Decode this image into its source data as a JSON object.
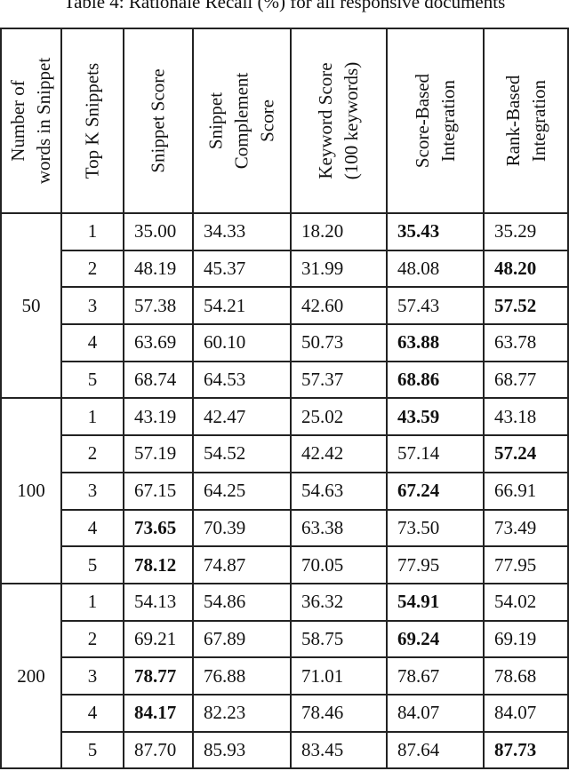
{
  "caption": "Table 4: Rationale Recall (%) for all responsive documents",
  "headers": [
    {
      "l1": "Number of",
      "l2": "words in Snippet"
    },
    {
      "l1": "Top K Snippets"
    },
    {
      "l1": "Snippet Score"
    },
    {
      "l1": "Snippet",
      "l2": "Complement",
      "l3": "Score"
    },
    {
      "l1": "Keyword Score",
      "l2": "(100 keywords)"
    },
    {
      "l1": "Score-Based",
      "l2": "Integration"
    },
    {
      "l1": "Rank-Based",
      "l2": "Integration"
    }
  ],
  "groups": [
    {
      "words": "50",
      "rows": [
        {
          "k": "1",
          "v": [
            "35.00",
            "34.33",
            "18.20",
            "35.43",
            "35.29"
          ],
          "best": 3
        },
        {
          "k": "2",
          "v": [
            "48.19",
            "45.37",
            "31.99",
            "48.08",
            "48.20"
          ],
          "best": 4
        },
        {
          "k": "3",
          "v": [
            "57.38",
            "54.21",
            "42.60",
            "57.43",
            "57.52"
          ],
          "best": 4
        },
        {
          "k": "4",
          "v": [
            "63.69",
            "60.10",
            "50.73",
            "63.88",
            "63.78"
          ],
          "best": 3
        },
        {
          "k": "5",
          "v": [
            "68.74",
            "64.53",
            "57.37",
            "68.86",
            "68.77"
          ],
          "best": 3
        }
      ]
    },
    {
      "words": "100",
      "rows": [
        {
          "k": "1",
          "v": [
            "43.19",
            "42.47",
            "25.02",
            "43.59",
            "43.18"
          ],
          "best": 3
        },
        {
          "k": "2",
          "v": [
            "57.19",
            "54.52",
            "42.42",
            "57.14",
            "57.24"
          ],
          "best": 4
        },
        {
          "k": "3",
          "v": [
            "67.15",
            "64.25",
            "54.63",
            "67.24",
            "66.91"
          ],
          "best": 3
        },
        {
          "k": "4",
          "v": [
            "73.65",
            "70.39",
            "63.38",
            "73.50",
            "73.49"
          ],
          "best": 0
        },
        {
          "k": "5",
          "v": [
            "78.12",
            "74.87",
            "70.05",
            "77.95",
            "77.95"
          ],
          "best": 0
        }
      ]
    },
    {
      "words": "200",
      "rows": [
        {
          "k": "1",
          "v": [
            "54.13",
            "54.86",
            "36.32",
            "54.91",
            "54.02"
          ],
          "best": 3
        },
        {
          "k": "2",
          "v": [
            "69.21",
            "67.89",
            "58.75",
            "69.24",
            "69.19"
          ],
          "best": 3
        },
        {
          "k": "3",
          "v": [
            "78.77",
            "76.88",
            "71.01",
            "78.67",
            "78.68"
          ],
          "best": 0
        },
        {
          "k": "4",
          "v": [
            "84.17",
            "82.23",
            "78.46",
            "84.07",
            "84.07"
          ],
          "best": 0
        },
        {
          "k": "5",
          "v": [
            "87.70",
            "85.93",
            "83.45",
            "87.64",
            "87.73"
          ],
          "best": 4
        }
      ]
    }
  ]
}
